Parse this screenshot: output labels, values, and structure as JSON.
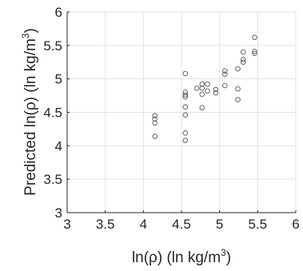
{
  "chart_data": {
    "type": "scatter",
    "xlabel": {
      "text": "ln(ρ) (ln kg/m",
      "sup": "3",
      "close": ")"
    },
    "ylabel": {
      "text": "Predicted ln(ρ) (ln kg/m",
      "sup": "3",
      "close": ")"
    },
    "xlim": [
      3,
      6
    ],
    "ylim": [
      3,
      6
    ],
    "xticks": [
      "3",
      "3.5",
      "4",
      "4.5",
      "5",
      "5.5",
      "6"
    ],
    "yticks": [
      "3",
      "3.5",
      "4",
      "4.5",
      "5",
      "5.5",
      "6"
    ],
    "grid": true,
    "marker": "open-circle",
    "points": [
      [
        4.15,
        4.14
      ],
      [
        4.15,
        4.34
      ],
      [
        4.15,
        4.4
      ],
      [
        4.15,
        4.45
      ],
      [
        4.55,
        4.08
      ],
      [
        4.55,
        4.19
      ],
      [
        4.55,
        4.46
      ],
      [
        4.55,
        4.58
      ],
      [
        4.55,
        4.73
      ],
      [
        4.55,
        4.76
      ],
      [
        4.55,
        4.8
      ],
      [
        4.55,
        5.08
      ],
      [
        4.7,
        4.86
      ],
      [
        4.77,
        4.57
      ],
      [
        4.77,
        4.77
      ],
      [
        4.77,
        4.86
      ],
      [
        4.77,
        4.92
      ],
      [
        4.84,
        4.82
      ],
      [
        4.84,
        4.92
      ],
      [
        4.95,
        4.79
      ],
      [
        4.95,
        4.84
      ],
      [
        5.07,
        4.9
      ],
      [
        5.07,
        5.07
      ],
      [
        5.07,
        5.12
      ],
      [
        5.24,
        4.69
      ],
      [
        5.24,
        4.85
      ],
      [
        5.24,
        5.15
      ],
      [
        5.31,
        5.25
      ],
      [
        5.31,
        5.29
      ],
      [
        5.31,
        5.4
      ],
      [
        5.46,
        5.38
      ],
      [
        5.46,
        5.41
      ],
      [
        5.46,
        5.62
      ]
    ]
  }
}
